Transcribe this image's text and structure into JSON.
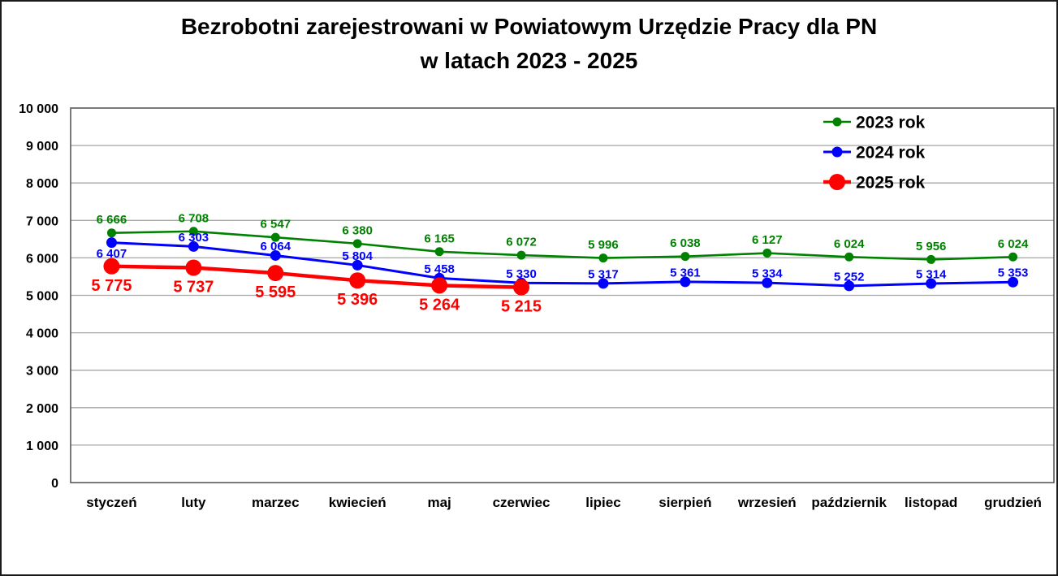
{
  "title": {
    "line1": "Bezrobotni zarejestrowani w Powiatowym Urzędzie Pracy dla PN",
    "line2": "w latach 2023 - 2025"
  },
  "chart_data": {
    "type": "line",
    "title": "Bezrobotni zarejestrowani w Powiatowym Urzędzie Pracy dla PN w latach 2023 - 2025",
    "categories": [
      "styczeń",
      "luty",
      "marzec",
      "kwiecień",
      "maj",
      "czerwiec",
      "lipiec",
      "sierpień",
      "wrzesień",
      "październik",
      "listopad",
      "grudzień"
    ],
    "series": [
      {
        "name": "2023 rok",
        "color": "#008200",
        "values": [
          6666,
          6708,
          6547,
          6380,
          6165,
          6072,
          5996,
          6038,
          6127,
          6024,
          5956,
          6024
        ],
        "marker_radius": 5.5,
        "line_width": 2.6,
        "label_size": 15,
        "label_side": "above",
        "label_gap": 6,
        "label_side_overrides": {}
      },
      {
        "name": "2024 rok",
        "color": "#0000FF",
        "values": [
          6407,
          6303,
          6064,
          5804,
          5458,
          5330,
          5317,
          5361,
          5334,
          5252,
          5314,
          5353
        ],
        "marker_radius": 6.5,
        "line_width": 3,
        "label_size": 15,
        "label_side": "above",
        "label_gap": 0,
        "label_side_overrides": {
          "0": "below"
        }
      },
      {
        "name": "2025 rok",
        "color": "#FF0000",
        "values": [
          5775,
          5737,
          5595,
          5396,
          5264,
          5215
        ],
        "marker_radius": 10,
        "line_width": 4.5,
        "label_size": 20,
        "label_side": "below",
        "label_gap": 4,
        "label_side_overrides": {}
      }
    ],
    "xlabel": "",
    "ylabel": "",
    "ylim": [
      0,
      10000
    ],
    "ytick_step": 1000,
    "grid": "horizontal",
    "grid_color": "#A6A6A6",
    "axis_border_color": "#595959",
    "legend_position": "top-right-inside",
    "thousands_separator": " ",
    "data_labels": true
  }
}
